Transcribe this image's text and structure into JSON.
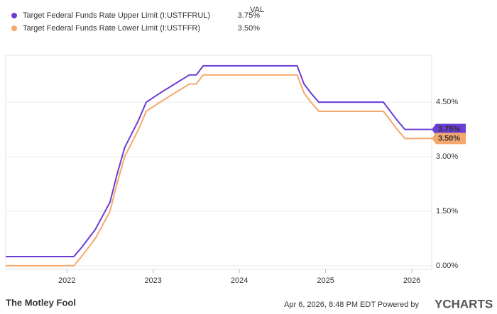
{
  "chart_data": {
    "type": "line",
    "value_header": "VAL",
    "x": [
      2021.29,
      2022.08,
      2022.17,
      2022.33,
      2022.5,
      2022.58,
      2022.67,
      2022.83,
      2022.92,
      2023.08,
      2023.25,
      2023.42,
      2023.5,
      2023.58,
      2024.58,
      2024.67,
      2024.75,
      2024.83,
      2024.92,
      2025.0,
      2025.58,
      2025.67,
      2025.75,
      2025.83,
      2025.92,
      2026.23
    ],
    "series": [
      {
        "name": "Target Federal Funds Rate Upper Limit (I:USTFFRUL)",
        "color": "#6a3dd4",
        "last_label": "3.75%",
        "values": [
          0.25,
          0.25,
          0.5,
          1.0,
          1.75,
          2.5,
          3.25,
          4.0,
          4.5,
          4.75,
          5.0,
          5.25,
          5.25,
          5.5,
          5.5,
          5.5,
          5.0,
          4.75,
          4.5,
          4.5,
          4.5,
          4.5,
          4.25,
          4.0,
          3.75,
          3.75
        ]
      },
      {
        "name": "Target Federal Funds Rate Lower Limit (I:USTFFR)",
        "color": "#f5a86e",
        "last_label": "3.50%",
        "values": [
          0.0,
          0.0,
          0.25,
          0.75,
          1.5,
          2.25,
          3.0,
          3.75,
          4.25,
          4.5,
          4.75,
          5.0,
          5.0,
          5.25,
          5.25,
          5.25,
          4.75,
          4.5,
          4.25,
          4.25,
          4.25,
          4.25,
          4.0,
          3.75,
          3.5,
          3.5
        ]
      }
    ],
    "xlim": [
      2021.29,
      2026.23
    ],
    "xticks": [
      2022,
      2023,
      2024,
      2025,
      2026
    ],
    "ylim": [
      -0.1,
      5.79
    ],
    "yticks": [
      {
        "value": 0,
        "label": "0.00%"
      },
      {
        "value": 1.5,
        "label": "1.50%"
      },
      {
        "value": 3,
        "label": "3.00%"
      },
      {
        "value": 4.5,
        "label": "4.50%"
      }
    ],
    "grid": true
  },
  "footer": {
    "brand": "The Motley Fool",
    "timestamp": "Apr 6, 2026, 8:48 PM EDT  Powered by",
    "provider": "YCHARTS"
  }
}
